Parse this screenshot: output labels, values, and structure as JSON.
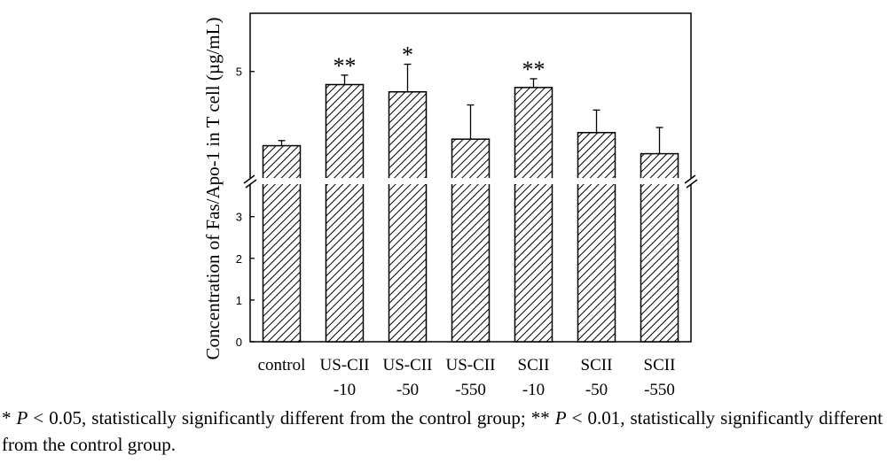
{
  "chart_data": {
    "type": "bar",
    "ylabel": "Concentration of Fas/Apo-1 in T cell (µg/mL)",
    "categories": [
      {
        "line1": "control",
        "line2": ""
      },
      {
        "line1": "US-CII",
        "line2": "-10"
      },
      {
        "line1": "US-CII",
        "line2": "-50"
      },
      {
        "line1": "US-CII",
        "line2": "-550"
      },
      {
        "line1": "SCII",
        "line2": "-10"
      },
      {
        "line1": "SCII",
        "line2": "-50"
      },
      {
        "line1": "SCII",
        "line2": "-550"
      }
    ],
    "values": [
      3.98,
      4.82,
      4.72,
      4.07,
      4.78,
      4.16,
      3.87
    ],
    "errors": [
      0.07,
      0.13,
      0.38,
      0.47,
      0.12,
      0.31,
      0.36
    ],
    "significance": [
      "",
      "**",
      "*",
      "",
      "**",
      "",
      ""
    ],
    "lower_segment": {
      "ylim": [
        0,
        3.8
      ],
      "ticks": [
        0,
        1,
        2,
        3
      ]
    },
    "upper_segment": {
      "ylim": [
        3.5,
        5.8
      ],
      "ticks": [
        5
      ]
    },
    "axis_break": true,
    "pattern": "diagonal-hatch"
  },
  "caption": {
    "sig1_star": "*",
    "sig1_p": "P",
    "sig1_text": "< 0.05, statistically significantly different from the control group;",
    "sig2_star": "**",
    "sig2_p": "P",
    "sig2_text": "< 0.01, statistically significantly different from the control group."
  }
}
